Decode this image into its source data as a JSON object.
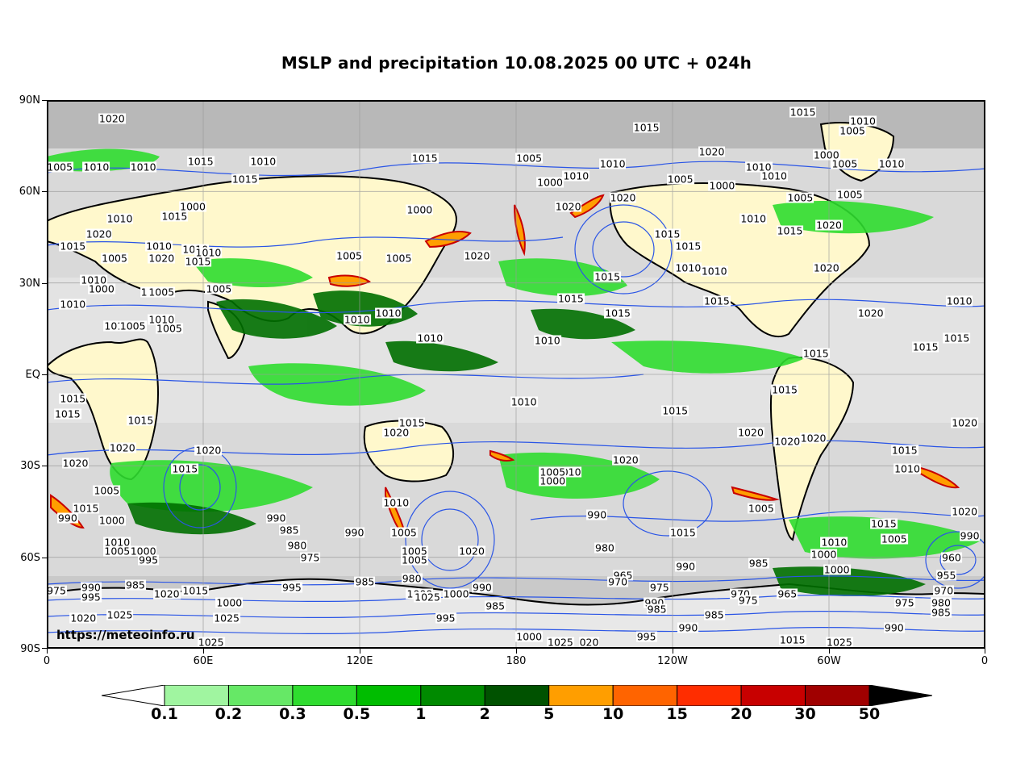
{
  "title": "MSLP and precipitation 10.08.2025 00 UTC + 024h",
  "watermark": "https://meteoinfo.ru",
  "axes": {
    "lat_labels": [
      "90N",
      "60N",
      "30N",
      "EQ",
      "30S",
      "60S",
      "90S"
    ],
    "lon_labels": [
      "0",
      "60E",
      "120E",
      "180",
      "120W",
      "60W",
      "0"
    ]
  },
  "map": {
    "projection": "equirectangular",
    "lat_range": [
      -90,
      90
    ],
    "lon_range": [
      0,
      360
    ],
    "isobar_color": "#2a55e6",
    "coastline_color": "#000000",
    "isobar_labels": [
      {
        "text": "1020",
        "lon": 25,
        "lat": 84
      },
      {
        "text": "1015",
        "lon": 290,
        "lat": 86
      },
      {
        "text": "1010",
        "lon": 313,
        "lat": 83
      },
      {
        "text": "1005",
        "lon": 309,
        "lat": 80
      },
      {
        "text": "1015",
        "lon": 230,
        "lat": 81
      },
      {
        "text": "1020",
        "lon": 255,
        "lat": 73
      },
      {
        "text": "1005",
        "lon": 5,
        "lat": 68
      },
      {
        "text": "1010",
        "lon": 19,
        "lat": 68
      },
      {
        "text": "1010",
        "lon": 37,
        "lat": 68
      },
      {
        "text": "1015",
        "lon": 59,
        "lat": 70
      },
      {
        "text": "1015",
        "lon": 76,
        "lat": 64
      },
      {
        "text": "1010",
        "lon": 83,
        "lat": 70
      },
      {
        "text": "1015",
        "lon": 145,
        "lat": 71
      },
      {
        "text": "1005",
        "lon": 185,
        "lat": 71
      },
      {
        "text": "1000",
        "lon": 193,
        "lat": 63
      },
      {
        "text": "1010",
        "lon": 203,
        "lat": 65
      },
      {
        "text": "1010",
        "lon": 217,
        "lat": 69
      },
      {
        "text": "1020",
        "lon": 221,
        "lat": 58
      },
      {
        "text": "1020",
        "lon": 200,
        "lat": 55
      },
      {
        "text": "1005",
        "lon": 243,
        "lat": 64
      },
      {
        "text": "1000",
        "lon": 259,
        "lat": 62
      },
      {
        "text": "1010",
        "lon": 273,
        "lat": 68
      },
      {
        "text": "1010",
        "lon": 279,
        "lat": 65
      },
      {
        "text": "1000",
        "lon": 299,
        "lat": 72
      },
      {
        "text": "1005",
        "lon": 306,
        "lat": 69
      },
      {
        "text": "1010",
        "lon": 324,
        "lat": 69
      },
      {
        "text": "1005",
        "lon": 308,
        "lat": 59
      },
      {
        "text": "1005",
        "lon": 289,
        "lat": 58
      },
      {
        "text": "1010",
        "lon": 271,
        "lat": 51
      },
      {
        "text": "1015",
        "lon": 285,
        "lat": 47
      },
      {
        "text": "1015",
        "lon": 238,
        "lat": 46
      },
      {
        "text": "1015",
        "lon": 246,
        "lat": 42
      },
      {
        "text": "1020",
        "lon": 300,
        "lat": 49
      },
      {
        "text": "1010",
        "lon": 28,
        "lat": 51
      },
      {
        "text": "1015",
        "lon": 49,
        "lat": 52
      },
      {
        "text": "1000",
        "lon": 56,
        "lat": 55
      },
      {
        "text": "1000",
        "lon": 143,
        "lat": 54
      },
      {
        "text": "1020",
        "lon": 20,
        "lat": 46
      },
      {
        "text": "1015",
        "lon": 10,
        "lat": 42
      },
      {
        "text": "1005",
        "lon": 26,
        "lat": 38
      },
      {
        "text": "1010",
        "lon": 43,
        "lat": 42
      },
      {
        "text": "1020",
        "lon": 44,
        "lat": 38
      },
      {
        "text": "1010",
        "lon": 57,
        "lat": 41
      },
      {
        "text": "1010",
        "lon": 62,
        "lat": 40
      },
      {
        "text": "1015",
        "lon": 58,
        "lat": 37
      },
      {
        "text": "1005",
        "lon": 116,
        "lat": 39
      },
      {
        "text": "1005",
        "lon": 135,
        "lat": 38
      },
      {
        "text": "1020",
        "lon": 165,
        "lat": 39
      },
      {
        "text": "1010",
        "lon": 246,
        "lat": 35
      },
      {
        "text": "1010",
        "lon": 256,
        "lat": 34
      },
      {
        "text": "1015",
        "lon": 215,
        "lat": 32
      },
      {
        "text": "1020",
        "lon": 299,
        "lat": 35
      },
      {
        "text": "1010",
        "lon": 18,
        "lat": 31
      },
      {
        "text": "1000",
        "lon": 21,
        "lat": 28
      },
      {
        "text": "1000",
        "lon": 41,
        "lat": 27
      },
      {
        "text": "1005",
        "lon": 44,
        "lat": 27
      },
      {
        "text": "1005",
        "lon": 66,
        "lat": 28
      },
      {
        "text": "1015",
        "lon": 201,
        "lat": 25
      },
      {
        "text": "1015",
        "lon": 219,
        "lat": 20
      },
      {
        "text": "1010",
        "lon": 10,
        "lat": 23
      },
      {
        "text": "1010",
        "lon": 27,
        "lat": 16
      },
      {
        "text": "1005",
        "lon": 33,
        "lat": 16
      },
      {
        "text": "1005",
        "lon": 47,
        "lat": 15
      },
      {
        "text": "1010",
        "lon": 44,
        "lat": 18
      },
      {
        "text": "1010",
        "lon": 119,
        "lat": 18
      },
      {
        "text": "1010",
        "lon": 131,
        "lat": 20
      },
      {
        "text": "1010",
        "lon": 147,
        "lat": 12
      },
      {
        "text": "1010",
        "lon": 192,
        "lat": 11
      },
      {
        "text": "1015",
        "lon": 257,
        "lat": 24
      },
      {
        "text": "1020",
        "lon": 316,
        "lat": 20
      },
      {
        "text": "1010",
        "lon": 350,
        "lat": 24
      },
      {
        "text": "1015",
        "lon": 349,
        "lat": 12
      },
      {
        "text": "1015",
        "lon": 337,
        "lat": 9
      },
      {
        "text": "1015",
        "lon": 295,
        "lat": 7
      },
      {
        "text": "1015",
        "lon": 10,
        "lat": -8
      },
      {
        "text": "1015",
        "lon": 8,
        "lat": -13
      },
      {
        "text": "1015",
        "lon": 36,
        "lat": -15
      },
      {
        "text": "1010",
        "lon": 183,
        "lat": -9
      },
      {
        "text": "1015",
        "lon": 140,
        "lat": -16
      },
      {
        "text": "1020",
        "lon": 134,
        "lat": -19
      },
      {
        "text": "1015",
        "lon": 241,
        "lat": -12
      },
      {
        "text": "1020",
        "lon": 270,
        "lat": -19
      },
      {
        "text": "1015",
        "lon": 283,
        "lat": -5
      },
      {
        "text": "1020",
        "lon": 352,
        "lat": -16
      },
      {
        "text": "1020",
        "lon": 284,
        "lat": -22
      },
      {
        "text": "1020",
        "lon": 294,
        "lat": -21
      },
      {
        "text": "1020",
        "lon": 29,
        "lat": -24
      },
      {
        "text": "1020",
        "lon": 62,
        "lat": -25
      },
      {
        "text": "1020",
        "lon": 11,
        "lat": -29
      },
      {
        "text": "1015",
        "lon": 53,
        "lat": -31
      },
      {
        "text": "1020",
        "lon": 222,
        "lat": -28
      },
      {
        "text": "1010",
        "lon": 200,
        "lat": -32
      },
      {
        "text": "1005",
        "lon": 194,
        "lat": -32
      },
      {
        "text": "1000",
        "lon": 194,
        "lat": -35
      },
      {
        "text": "1015",
        "lon": 329,
        "lat": -25
      },
      {
        "text": "1010",
        "lon": 330,
        "lat": -31
      },
      {
        "text": "1005",
        "lon": 23,
        "lat": -38
      },
      {
        "text": "1015",
        "lon": 15,
        "lat": -44
      },
      {
        "text": "990",
        "lon": 8,
        "lat": -47
      },
      {
        "text": "1000",
        "lon": 25,
        "lat": -48
      },
      {
        "text": "1010",
        "lon": 134,
        "lat": -42
      },
      {
        "text": "990",
        "lon": 88,
        "lat": -47
      },
      {
        "text": "985",
        "lon": 93,
        "lat": -51
      },
      {
        "text": "990",
        "lon": 118,
        "lat": -52
      },
      {
        "text": "1005",
        "lon": 137,
        "lat": -52
      },
      {
        "text": "980",
        "lon": 96,
        "lat": -56
      },
      {
        "text": "975",
        "lon": 101,
        "lat": -60
      },
      {
        "text": "990",
        "lon": 211,
        "lat": -46
      },
      {
        "text": "1005",
        "lon": 274,
        "lat": -44
      },
      {
        "text": "1015",
        "lon": 244,
        "lat": -52
      },
      {
        "text": "1010",
        "lon": 302,
        "lat": -55
      },
      {
        "text": "1005",
        "lon": 325,
        "lat": -54
      },
      {
        "text": "1015",
        "lon": 321,
        "lat": -49
      },
      {
        "text": "1020",
        "lon": 352,
        "lat": -45
      },
      {
        "text": "990",
        "lon": 354,
        "lat": -53
      },
      {
        "text": "960",
        "lon": 347,
        "lat": -60
      },
      {
        "text": "955",
        "lon": 345,
        "lat": -66
      },
      {
        "text": "970",
        "lon": 344,
        "lat": -71
      },
      {
        "text": "980",
        "lon": 343,
        "lat": -75
      },
      {
        "text": "985",
        "lon": 343,
        "lat": -78
      },
      {
        "text": "1010",
        "lon": 27,
        "lat": -55
      },
      {
        "text": "1005",
        "lon": 27,
        "lat": -58
      },
      {
        "text": "1000",
        "lon": 37,
        "lat": -58
      },
      {
        "text": "995",
        "lon": 39,
        "lat": -61
      },
      {
        "text": "1005",
        "lon": 141,
        "lat": -58
      },
      {
        "text": "1005",
        "lon": 141,
        "lat": -61
      },
      {
        "text": "1020",
        "lon": 163,
        "lat": -58
      },
      {
        "text": "980",
        "lon": 214,
        "lat": -57
      },
      {
        "text": "965",
        "lon": 221,
        "lat": -66
      },
      {
        "text": "970",
        "lon": 219,
        "lat": -68
      },
      {
        "text": "975",
        "lon": 235,
        "lat": -70
      },
      {
        "text": "990",
        "lon": 245,
        "lat": -63
      },
      {
        "text": "985",
        "lon": 273,
        "lat": -62
      },
      {
        "text": "1000",
        "lon": 298,
        "lat": -59
      },
      {
        "text": "1000",
        "lon": 303,
        "lat": -64
      },
      {
        "text": "975",
        "lon": 1,
        "lat": -71
      },
      {
        "text": "990",
        "lon": 17,
        "lat": -70
      },
      {
        "text": "985",
        "lon": 34,
        "lat": -69
      },
      {
        "text": "995",
        "lon": 17,
        "lat": -73
      },
      {
        "text": "1020",
        "lon": 14,
        "lat": -80
      },
      {
        "text": "1025",
        "lon": 28,
        "lat": -79
      },
      {
        "text": "1015",
        "lon": 57,
        "lat": -71
      },
      {
        "text": "1020",
        "lon": 46,
        "lat": -72
      },
      {
        "text": "1000",
        "lon": 70,
        "lat": -75
      },
      {
        "text": "1025",
        "lon": 69,
        "lat": -80
      },
      {
        "text": "995",
        "lon": 94,
        "lat": -70
      },
      {
        "text": "985",
        "lon": 122,
        "lat": -68
      },
      {
        "text": "980",
        "lon": 140,
        "lat": -67
      },
      {
        "text": "1000",
        "lon": 143,
        "lat": -72
      },
      {
        "text": "1025",
        "lon": 146,
        "lat": -73
      },
      {
        "text": "1000",
        "lon": 157,
        "lat": -72
      },
      {
        "text": "990",
        "lon": 167,
        "lat": -70
      },
      {
        "text": "985",
        "lon": 172,
        "lat": -76
      },
      {
        "text": "995",
        "lon": 153,
        "lat": -80
      },
      {
        "text": "970",
        "lon": 266,
        "lat": -72
      },
      {
        "text": "975",
        "lon": 269,
        "lat": -74
      },
      {
        "text": "965",
        "lon": 284,
        "lat": -72
      },
      {
        "text": "990",
        "lon": 233,
        "lat": -75
      },
      {
        "text": "985",
        "lon": 234,
        "lat": -77
      },
      {
        "text": "985",
        "lon": 256,
        "lat": -79
      },
      {
        "text": "990",
        "lon": 246,
        "lat": -83
      },
      {
        "text": "995",
        "lon": 230,
        "lat": -86
      },
      {
        "text": "975",
        "lon": 329,
        "lat": -75
      },
      {
        "text": "990",
        "lon": 325,
        "lat": -83
      },
      {
        "text": "1000",
        "lon": 185,
        "lat": -86
      },
      {
        "text": "1025",
        "lon": 197,
        "lat": -88
      },
      {
        "text": "020",
        "lon": 208,
        "lat": -88
      },
      {
        "text": "1015",
        "lon": 286,
        "lat": -87
      },
      {
        "text": "1025",
        "lon": 304,
        "lat": -88
      },
      {
        "text": "1025",
        "lon": 63,
        "lat": -88
      }
    ]
  },
  "colorbar": {
    "boundaries": [
      "0.1",
      "0.2",
      "0.3",
      "0.5",
      "1",
      "2",
      "5",
      "10",
      "15",
      "20",
      "30",
      "50"
    ],
    "colors": [
      "#a0f5a0",
      "#66e866",
      "#2fdc2f",
      "#00bd00",
      "#008a00",
      "#005200",
      "#ff9e00",
      "#ff6400",
      "#ff2d00",
      "#c80000",
      "#a00000"
    ],
    "under_color": "#ffffff",
    "over_color": "#000000"
  },
  "chart_data": {
    "type": "heatmap",
    "title": "MSLP and precipitation 10.08.2025 00 UTC + 024h",
    "xlabel": "",
    "ylabel": "",
    "x_ticks": [
      "0",
      "60E",
      "120E",
      "180",
      "120W",
      "60W",
      "0"
    ],
    "y_ticks": [
      "90N",
      "60N",
      "30N",
      "EQ",
      "30S",
      "60S",
      "90S"
    ],
    "xlim": [
      0,
      360
    ],
    "ylim": [
      -90,
      90
    ],
    "legend": "colorbar-bottom",
    "grid": true
  }
}
